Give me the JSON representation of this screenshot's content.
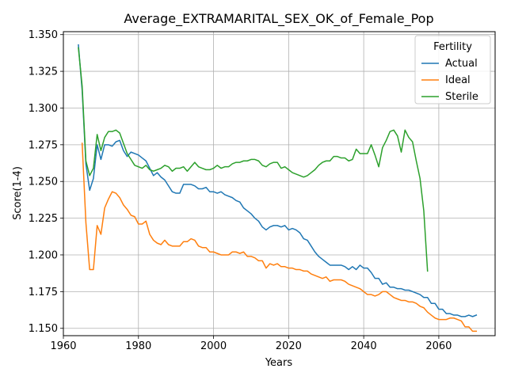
{
  "chart_data": {
    "type": "line",
    "title": "Average_EXTRAMARITAL_SEX_OK_of_Female_Pop",
    "xlabel": "Years",
    "ylabel": "Score(1-4)",
    "xlim": [
      1960,
      2075
    ],
    "ylim": [
      1.145,
      1.352
    ],
    "x_ticks": [
      1960,
      1980,
      2000,
      2020,
      2040,
      2060
    ],
    "x_tick_labels": [
      "1960",
      "1980",
      "2000",
      "2020",
      "2040",
      "2060"
    ],
    "y_ticks": [
      1.15,
      1.175,
      1.2,
      1.225,
      1.25,
      1.275,
      1.3,
      1.325,
      1.35
    ],
    "y_tick_labels": [
      "1.150",
      "1.175",
      "1.200",
      "1.225",
      "1.250",
      "1.275",
      "1.300",
      "1.325",
      "1.350"
    ],
    "grid": true,
    "legend": {
      "title": "Fertility",
      "placement": "top-right"
    },
    "series": [
      {
        "name": "Actual",
        "color": "#1f77b4",
        "points": [
          [
            1964,
            1.343
          ],
          [
            1965,
            1.312
          ],
          [
            1966,
            1.262
          ],
          [
            1967,
            1.244
          ],
          [
            1968,
            1.252
          ],
          [
            1969,
            1.275
          ],
          [
            1970,
            1.265
          ],
          [
            1971,
            1.275
          ],
          [
            1972,
            1.275
          ],
          [
            1973,
            1.274
          ],
          [
            1974,
            1.277
          ],
          [
            1975,
            1.278
          ],
          [
            1976,
            1.271
          ],
          [
            1977,
            1.267
          ],
          [
            1978,
            1.27
          ],
          [
            1979,
            1.269
          ],
          [
            1980,
            1.268
          ],
          [
            1981,
            1.266
          ],
          [
            1982,
            1.264
          ],
          [
            1983,
            1.259
          ],
          [
            1984,
            1.254
          ],
          [
            1985,
            1.256
          ],
          [
            1986,
            1.253
          ],
          [
            1987,
            1.251
          ],
          [
            1988,
            1.247
          ],
          [
            1989,
            1.243
          ],
          [
            1990,
            1.242
          ],
          [
            1991,
            1.242
          ],
          [
            1992,
            1.248
          ],
          [
            1993,
            1.248
          ],
          [
            1994,
            1.248
          ],
          [
            1995,
            1.247
          ],
          [
            1996,
            1.245
          ],
          [
            1997,
            1.245
          ],
          [
            1998,
            1.246
          ],
          [
            1999,
            1.243
          ],
          [
            2000,
            1.243
          ],
          [
            2001,
            1.242
          ],
          [
            2002,
            1.243
          ],
          [
            2003,
            1.241
          ],
          [
            2004,
            1.24
          ],
          [
            2005,
            1.239
          ],
          [
            2006,
            1.237
          ],
          [
            2007,
            1.236
          ],
          [
            2008,
            1.232
          ],
          [
            2009,
            1.23
          ],
          [
            2010,
            1.228
          ],
          [
            2011,
            1.225
          ],
          [
            2012,
            1.223
          ],
          [
            2013,
            1.219
          ],
          [
            2014,
            1.217
          ],
          [
            2015,
            1.219
          ],
          [
            2016,
            1.22
          ],
          [
            2017,
            1.22
          ],
          [
            2018,
            1.219
          ],
          [
            2019,
            1.22
          ],
          [
            2020,
            1.217
          ],
          [
            2021,
            1.218
          ],
          [
            2022,
            1.217
          ],
          [
            2023,
            1.215
          ],
          [
            2024,
            1.211
          ],
          [
            2025,
            1.21
          ],
          [
            2026,
            1.206
          ],
          [
            2027,
            1.202
          ],
          [
            2028,
            1.199
          ],
          [
            2029,
            1.197
          ],
          [
            2030,
            1.195
          ],
          [
            2031,
            1.193
          ],
          [
            2032,
            1.193
          ],
          [
            2033,
            1.193
          ],
          [
            2034,
            1.193
          ],
          [
            2035,
            1.192
          ],
          [
            2036,
            1.19
          ],
          [
            2037,
            1.192
          ],
          [
            2038,
            1.19
          ],
          [
            2039,
            1.193
          ],
          [
            2040,
            1.191
          ],
          [
            2041,
            1.191
          ],
          [
            2042,
            1.188
          ],
          [
            2043,
            1.184
          ],
          [
            2044,
            1.184
          ],
          [
            2045,
            1.18
          ],
          [
            2046,
            1.181
          ],
          [
            2047,
            1.178
          ],
          [
            2048,
            1.178
          ],
          [
            2049,
            1.177
          ],
          [
            2050,
            1.177
          ],
          [
            2051,
            1.176
          ],
          [
            2052,
            1.176
          ],
          [
            2053,
            1.175
          ],
          [
            2054,
            1.174
          ],
          [
            2055,
            1.173
          ],
          [
            2056,
            1.171
          ],
          [
            2057,
            1.171
          ],
          [
            2058,
            1.167
          ],
          [
            2059,
            1.167
          ],
          [
            2060,
            1.163
          ],
          [
            2061,
            1.163
          ],
          [
            2062,
            1.16
          ],
          [
            2063,
            1.16
          ],
          [
            2064,
            1.159
          ],
          [
            2065,
            1.159
          ],
          [
            2066,
            1.158
          ],
          [
            2067,
            1.158
          ],
          [
            2068,
            1.159
          ],
          [
            2069,
            1.158
          ],
          [
            2070,
            1.159
          ]
        ]
      },
      {
        "name": "Ideal",
        "color": "#ff7f0e",
        "points": [
          [
            1965,
            1.276
          ],
          [
            1966,
            1.222
          ],
          [
            1967,
            1.19
          ],
          [
            1968,
            1.19
          ],
          [
            1969,
            1.22
          ],
          [
            1970,
            1.214
          ],
          [
            1971,
            1.232
          ],
          [
            1972,
            1.238
          ],
          [
            1973,
            1.243
          ],
          [
            1974,
            1.242
          ],
          [
            1975,
            1.239
          ],
          [
            1976,
            1.234
          ],
          [
            1977,
            1.231
          ],
          [
            1978,
            1.227
          ],
          [
            1979,
            1.226
          ],
          [
            1980,
            1.221
          ],
          [
            1981,
            1.221
          ],
          [
            1982,
            1.223
          ],
          [
            1983,
            1.214
          ],
          [
            1984,
            1.21
          ],
          [
            1985,
            1.208
          ],
          [
            1986,
            1.207
          ],
          [
            1987,
            1.21
          ],
          [
            1988,
            1.207
          ],
          [
            1989,
            1.206
          ],
          [
            1990,
            1.206
          ],
          [
            1991,
            1.206
          ],
          [
            1992,
            1.209
          ],
          [
            1993,
            1.209
          ],
          [
            1994,
            1.211
          ],
          [
            1995,
            1.21
          ],
          [
            1996,
            1.206
          ],
          [
            1997,
            1.205
          ],
          [
            1998,
            1.205
          ],
          [
            1999,
            1.202
          ],
          [
            2000,
            1.202
          ],
          [
            2001,
            1.201
          ],
          [
            2002,
            1.2
          ],
          [
            2003,
            1.2
          ],
          [
            2004,
            1.2
          ],
          [
            2005,
            1.202
          ],
          [
            2006,
            1.202
          ],
          [
            2007,
            1.201
          ],
          [
            2008,
            1.202
          ],
          [
            2009,
            1.199
          ],
          [
            2010,
            1.199
          ],
          [
            2011,
            1.198
          ],
          [
            2012,
            1.196
          ],
          [
            2013,
            1.196
          ],
          [
            2014,
            1.191
          ],
          [
            2015,
            1.194
          ],
          [
            2016,
            1.193
          ],
          [
            2017,
            1.194
          ],
          [
            2018,
            1.192
          ],
          [
            2019,
            1.192
          ],
          [
            2020,
            1.191
          ],
          [
            2021,
            1.191
          ],
          [
            2022,
            1.19
          ],
          [
            2023,
            1.19
          ],
          [
            2024,
            1.189
          ],
          [
            2025,
            1.189
          ],
          [
            2026,
            1.187
          ],
          [
            2027,
            1.186
          ],
          [
            2028,
            1.185
          ],
          [
            2029,
            1.184
          ],
          [
            2030,
            1.185
          ],
          [
            2031,
            1.182
          ],
          [
            2032,
            1.183
          ],
          [
            2033,
            1.183
          ],
          [
            2034,
            1.183
          ],
          [
            2035,
            1.182
          ],
          [
            2036,
            1.18
          ],
          [
            2037,
            1.179
          ],
          [
            2038,
            1.178
          ],
          [
            2039,
            1.177
          ],
          [
            2040,
            1.175
          ],
          [
            2041,
            1.173
          ],
          [
            2042,
            1.173
          ],
          [
            2043,
            1.172
          ],
          [
            2044,
            1.173
          ],
          [
            2045,
            1.175
          ],
          [
            2046,
            1.175
          ],
          [
            2047,
            1.173
          ],
          [
            2048,
            1.171
          ],
          [
            2049,
            1.17
          ],
          [
            2050,
            1.169
          ],
          [
            2051,
            1.169
          ],
          [
            2052,
            1.168
          ],
          [
            2053,
            1.168
          ],
          [
            2054,
            1.167
          ],
          [
            2055,
            1.165
          ],
          [
            2056,
            1.164
          ],
          [
            2057,
            1.161
          ],
          [
            2058,
            1.159
          ],
          [
            2059,
            1.157
          ],
          [
            2060,
            1.156
          ],
          [
            2061,
            1.156
          ],
          [
            2062,
            1.156
          ],
          [
            2063,
            1.157
          ],
          [
            2064,
            1.157
          ],
          [
            2065,
            1.156
          ],
          [
            2066,
            1.155
          ],
          [
            2067,
            1.151
          ],
          [
            2068,
            1.151
          ],
          [
            2069,
            1.148
          ],
          [
            2070,
            1.148
          ]
        ]
      },
      {
        "name": "Sterile",
        "color": "#2ca02c",
        "points": [
          [
            1964,
            1.341
          ],
          [
            1965,
            1.315
          ],
          [
            1966,
            1.264
          ],
          [
            1967,
            1.254
          ],
          [
            1968,
            1.259
          ],
          [
            1969,
            1.282
          ],
          [
            1970,
            1.271
          ],
          [
            1971,
            1.28
          ],
          [
            1972,
            1.284
          ],
          [
            1973,
            1.284
          ],
          [
            1974,
            1.285
          ],
          [
            1975,
            1.283
          ],
          [
            1976,
            1.276
          ],
          [
            1977,
            1.269
          ],
          [
            1978,
            1.265
          ],
          [
            1979,
            1.261
          ],
          [
            1980,
            1.26
          ],
          [
            1981,
            1.259
          ],
          [
            1982,
            1.261
          ],
          [
            1983,
            1.258
          ],
          [
            1984,
            1.257
          ],
          [
            1985,
            1.258
          ],
          [
            1986,
            1.259
          ],
          [
            1987,
            1.261
          ],
          [
            1988,
            1.26
          ],
          [
            1989,
            1.257
          ],
          [
            1990,
            1.259
          ],
          [
            1991,
            1.259
          ],
          [
            1992,
            1.26
          ],
          [
            1993,
            1.257
          ],
          [
            1994,
            1.26
          ],
          [
            1995,
            1.263
          ],
          [
            1996,
            1.26
          ],
          [
            1997,
            1.259
          ],
          [
            1998,
            1.258
          ],
          [
            1999,
            1.258
          ],
          [
            2000,
            1.259
          ],
          [
            2001,
            1.261
          ],
          [
            2002,
            1.259
          ],
          [
            2003,
            1.26
          ],
          [
            2004,
            1.26
          ],
          [
            2005,
            1.262
          ],
          [
            2006,
            1.263
          ],
          [
            2007,
            1.263
          ],
          [
            2008,
            1.264
          ],
          [
            2009,
            1.264
          ],
          [
            2010,
            1.265
          ],
          [
            2011,
            1.265
          ],
          [
            2012,
            1.264
          ],
          [
            2013,
            1.261
          ],
          [
            2014,
            1.26
          ],
          [
            2015,
            1.262
          ],
          [
            2016,
            1.263
          ],
          [
            2017,
            1.263
          ],
          [
            2018,
            1.259
          ],
          [
            2019,
            1.26
          ],
          [
            2020,
            1.258
          ],
          [
            2021,
            1.256
          ],
          [
            2022,
            1.255
          ],
          [
            2023,
            1.254
          ],
          [
            2024,
            1.253
          ],
          [
            2025,
            1.254
          ],
          [
            2026,
            1.256
          ],
          [
            2027,
            1.258
          ],
          [
            2028,
            1.261
          ],
          [
            2029,
            1.263
          ],
          [
            2030,
            1.264
          ],
          [
            2031,
            1.264
          ],
          [
            2032,
            1.267
          ],
          [
            2033,
            1.267
          ],
          [
            2034,
            1.266
          ],
          [
            2035,
            1.266
          ],
          [
            2036,
            1.264
          ],
          [
            2037,
            1.265
          ],
          [
            2038,
            1.272
          ],
          [
            2039,
            1.269
          ],
          [
            2040,
            1.269
          ],
          [
            2041,
            1.269
          ],
          [
            2042,
            1.275
          ],
          [
            2043,
            1.268
          ],
          [
            2044,
            1.26
          ],
          [
            2045,
            1.273
          ],
          [
            2046,
            1.278
          ],
          [
            2047,
            1.284
          ],
          [
            2048,
            1.285
          ],
          [
            2049,
            1.281
          ],
          [
            2050,
            1.27
          ],
          [
            2051,
            1.285
          ],
          [
            2052,
            1.28
          ],
          [
            2053,
            1.277
          ],
          [
            2054,
            1.264
          ],
          [
            2055,
            1.252
          ],
          [
            2056,
            1.23
          ],
          [
            2057,
            1.189
          ]
        ]
      }
    ]
  }
}
